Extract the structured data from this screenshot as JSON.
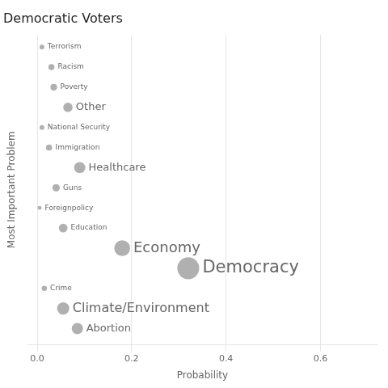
{
  "chart_data": {
    "type": "scatter",
    "title": "Democratic Voters",
    "xlabel": "Probability",
    "ylabel": "Most Important Problem",
    "categories": [
      "Terrorism",
      "Racism",
      "Poverty",
      "Other",
      "National Security",
      "Immigration",
      "Healthcare",
      "Guns",
      "Foreignpolicy",
      "Education",
      "Economy",
      "Democracy",
      "Crime",
      "Climate/Environment",
      "Abortion"
    ],
    "values": [
      0.01,
      0.03,
      0.035,
      0.065,
      0.01,
      0.025,
      0.09,
      0.04,
      0.005,
      0.055,
      0.18,
      0.32,
      0.015,
      0.055,
      0.085
    ],
    "sizes": [
      18,
      30,
      35,
      70,
      18,
      30,
      100,
      45,
      12,
      60,
      200,
      380,
      22,
      120,
      100
    ],
    "color": "#b0b0b0",
    "xlim": [
      -0.02,
      0.72
    ],
    "xticks": [
      {
        "value": 0,
        "label": "0.0"
      },
      0.2,
      0.4,
      0.6
    ],
    "grid": true,
    "tick_labels": "x"
  }
}
